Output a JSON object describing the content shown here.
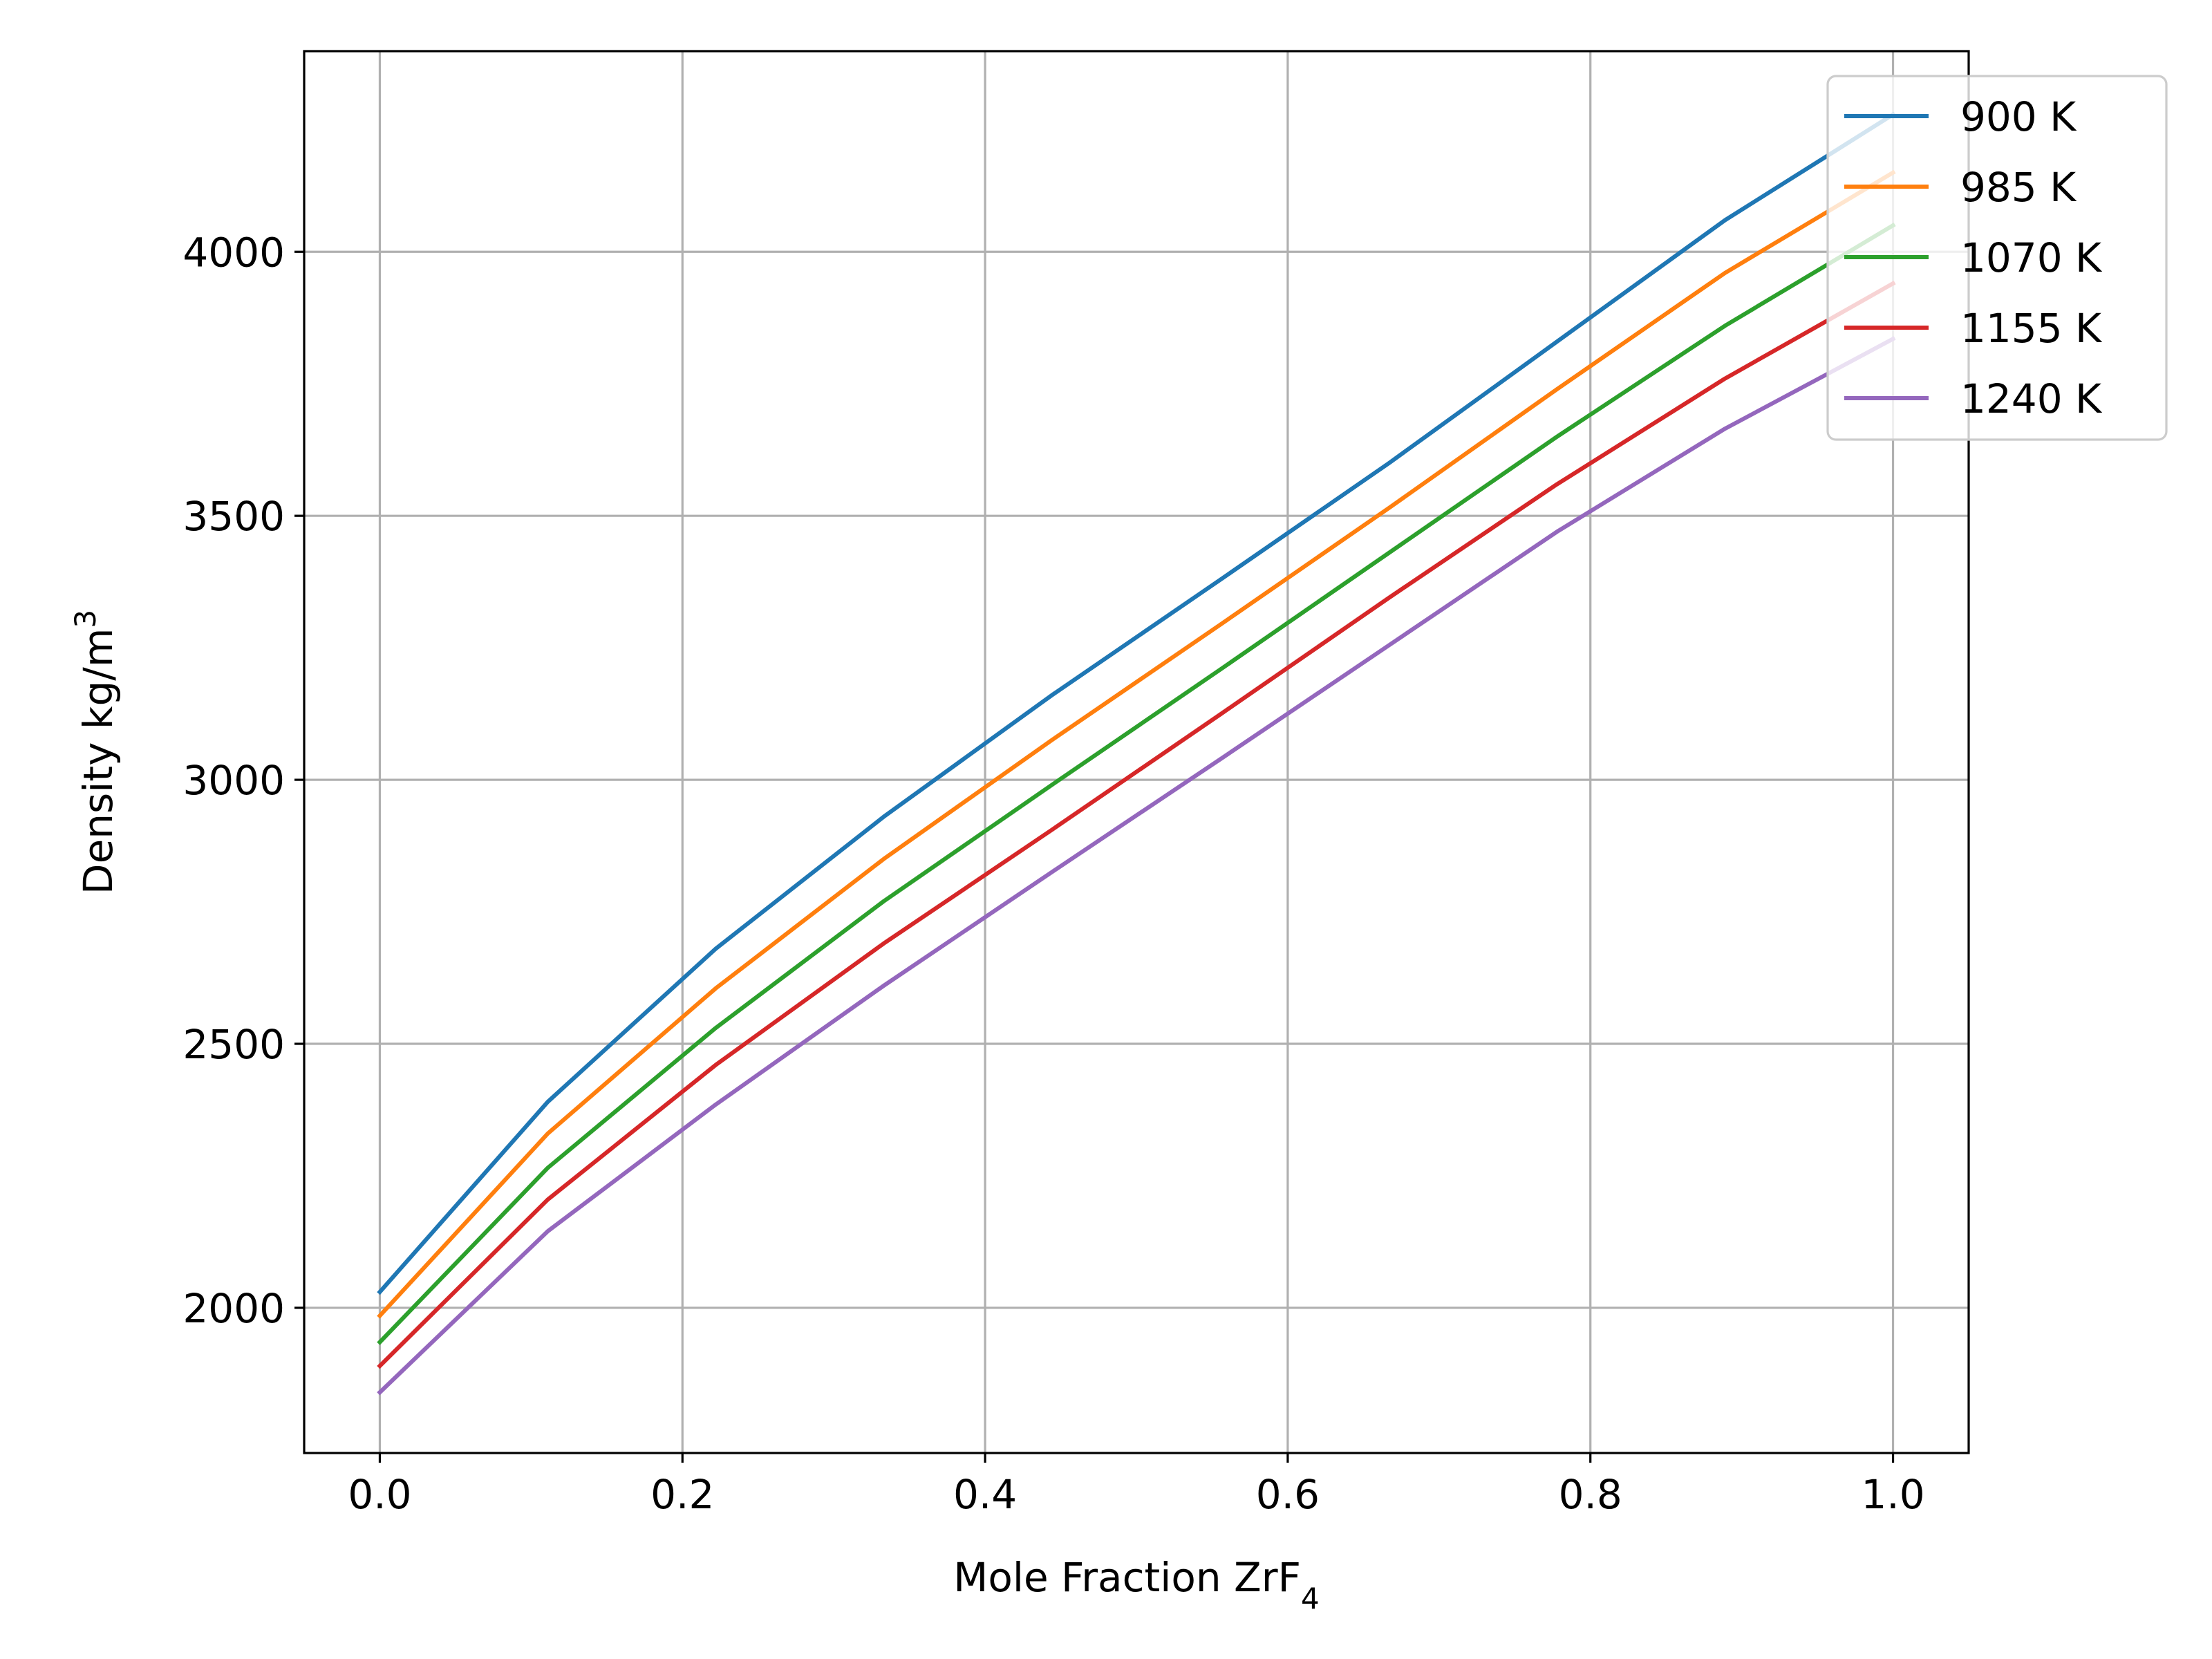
{
  "chart_data": {
    "type": "line",
    "title": "",
    "xlabel": "Mole Fraction ZrF",
    "xlabel_subscript": "4",
    "ylabel": "Density kg/m",
    "ylabel_superscript": "3",
    "xlim": [
      -0.05,
      1.05
    ],
    "ylim": [
      1725,
      4380
    ],
    "xticks": [
      0.0,
      0.2,
      0.4,
      0.6,
      0.8,
      1.0
    ],
    "xtick_labels": [
      "0.0",
      "0.2",
      "0.4",
      "0.6",
      "0.8",
      "1.0"
    ],
    "yticks": [
      2000,
      2500,
      3000,
      3500,
      4000
    ],
    "ytick_labels": [
      "2000",
      "2500",
      "3000",
      "3500",
      "4000"
    ],
    "grid": true,
    "legend_position": "top-right",
    "x": [
      0.0,
      0.111,
      0.222,
      0.333,
      0.444,
      0.556,
      0.667,
      0.778,
      0.889,
      1.0
    ],
    "series": [
      {
        "name": "900 K",
        "color": "#1f77b4",
        "values": [
          2030,
          2390,
          2680,
          2930,
          3160,
          3380,
          3600,
          3830,
          4060,
          4260
        ]
      },
      {
        "name": "985 K",
        "color": "#ff7f0e",
        "values": [
          1985,
          2330,
          2605,
          2850,
          3075,
          3295,
          3515,
          3740,
          3960,
          4150
        ]
      },
      {
        "name": "1070 K",
        "color": "#2ca02c",
        "values": [
          1935,
          2265,
          2530,
          2770,
          2990,
          3210,
          3430,
          3650,
          3860,
          4050
        ]
      },
      {
        "name": "1155 K",
        "color": "#d62728",
        "values": [
          1890,
          2205,
          2460,
          2690,
          2905,
          3125,
          3345,
          3560,
          3760,
          3940
        ]
      },
      {
        "name": "1240 K",
        "color": "#9467bd",
        "values": [
          1840,
          2145,
          2385,
          2610,
          2825,
          3040,
          3255,
          3470,
          3665,
          3835
        ]
      }
    ]
  }
}
